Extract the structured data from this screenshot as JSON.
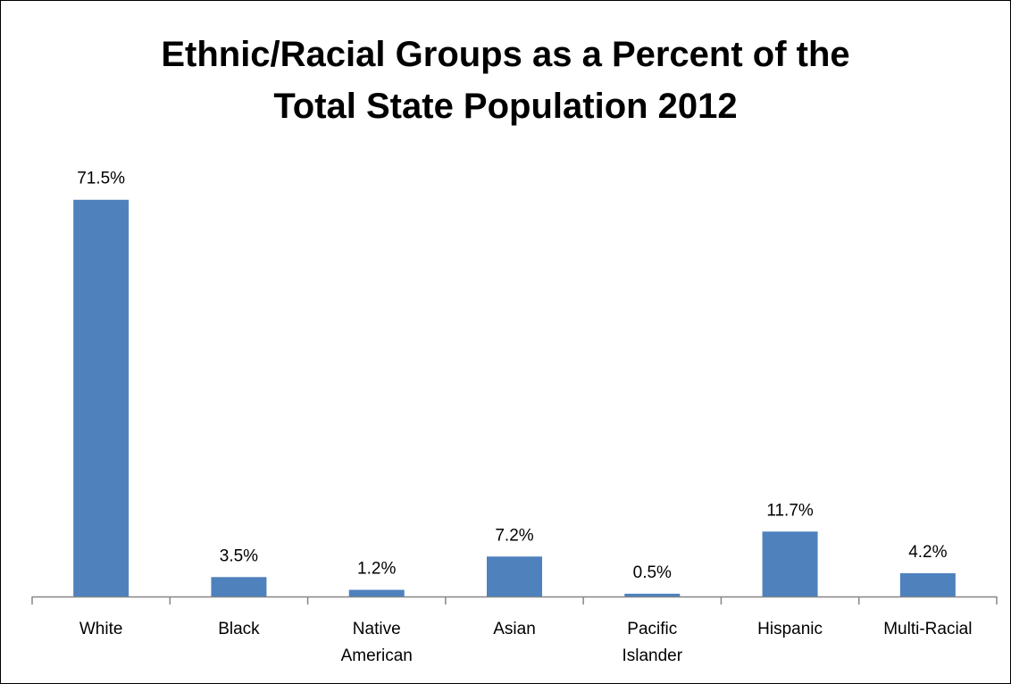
{
  "chart_data": {
    "type": "bar",
    "title_lines": [
      "Ethnic/Racial Groups as a Percent of the",
      "Total State Population 2012"
    ],
    "categories": [
      [
        "White"
      ],
      [
        "Black"
      ],
      [
        "Native",
        "American"
      ],
      [
        "Asian"
      ],
      [
        "Pacific",
        "Islander"
      ],
      [
        "Hispanic"
      ],
      [
        "Multi-Racial"
      ]
    ],
    "values": [
      71.5,
      3.5,
      1.2,
      7.2,
      0.5,
      11.7,
      4.2
    ],
    "value_labels": [
      "71.5%",
      "3.5%",
      "1.2%",
      "7.2%",
      "0.5%",
      "11.7%",
      "4.2%"
    ],
    "unit": "%",
    "ylim": [
      0,
      75
    ],
    "grid": false,
    "legend": "none",
    "bar_color": "#4f81bd",
    "axis_color": "#868686"
  }
}
